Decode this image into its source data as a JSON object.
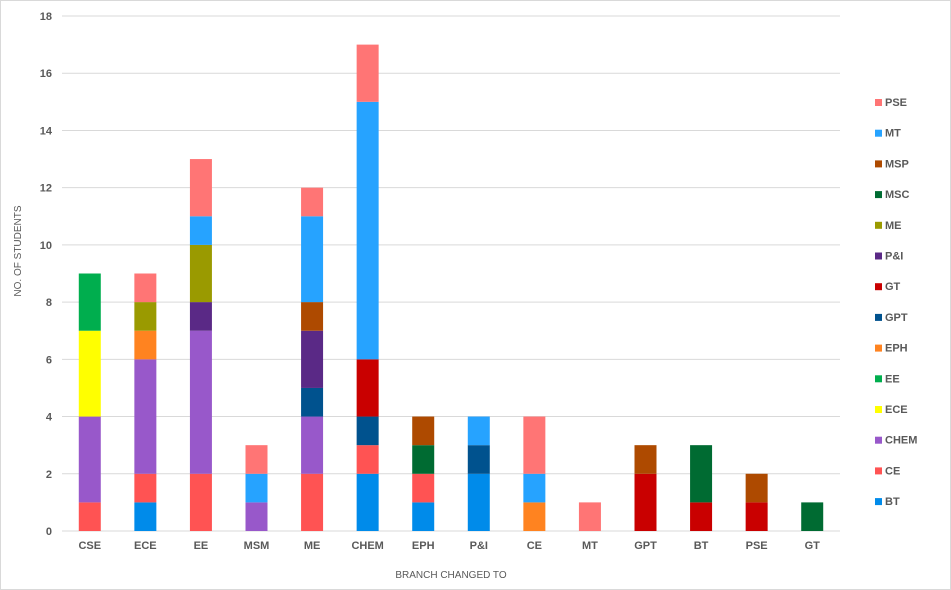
{
  "chart_data": {
    "type": "bar",
    "stacked": true,
    "xlabel": "BRANCH CHANGED TO",
    "ylabel": "NO. OF STUDENTS",
    "ylim": [
      0,
      18
    ],
    "yticks": [
      0,
      2,
      4,
      6,
      8,
      10,
      12,
      14,
      16,
      18
    ],
    "grid": true,
    "legend_position": "right",
    "categories": [
      "CSE",
      "ECE",
      "EE",
      "MSM",
      "ME",
      "CHEM",
      "EPH",
      "P&I",
      "CE",
      "MT",
      "GPT",
      "BT",
      "PSE",
      "GT"
    ],
    "series": [
      {
        "name": "BT",
        "color": "#008BEA",
        "values": [
          0,
          1,
          0,
          0,
          0,
          2,
          1,
          2,
          0,
          0,
          0,
          0,
          0,
          0
        ]
      },
      {
        "name": "CE",
        "color": "#FF5353",
        "values": [
          1,
          1,
          2,
          0,
          2,
          1,
          1,
          0,
          0,
          0,
          0,
          0,
          0,
          0
        ]
      },
      {
        "name": "CHEM",
        "color": "#9858CA",
        "values": [
          3,
          4,
          5,
          1,
          2,
          0,
          0,
          0,
          0,
          0,
          0,
          0,
          0,
          0
        ]
      },
      {
        "name": "ECE",
        "color": "#FFFF00",
        "values": [
          3,
          0,
          0,
          0,
          0,
          0,
          0,
          0,
          0,
          0,
          0,
          0,
          0,
          0
        ]
      },
      {
        "name": "EE",
        "color": "#00AE4E",
        "values": [
          2,
          0,
          0,
          0,
          0,
          0,
          0,
          0,
          0,
          0,
          0,
          0,
          0,
          0
        ]
      },
      {
        "name": "EPH",
        "color": "#FF8320",
        "values": [
          0,
          1,
          0,
          0,
          0,
          0,
          0,
          0,
          1,
          0,
          0,
          0,
          0,
          0
        ]
      },
      {
        "name": "GPT",
        "color": "#00528E",
        "values": [
          0,
          0,
          0,
          0,
          1,
          1,
          0,
          1,
          0,
          0,
          0,
          0,
          0,
          0
        ]
      },
      {
        "name": "GT",
        "color": "#C90000",
        "values": [
          0,
          0,
          0,
          0,
          0,
          2,
          0,
          0,
          0,
          0,
          2,
          1,
          1,
          0
        ]
      },
      {
        "name": "P&I",
        "color": "#5A2986",
        "values": [
          0,
          0,
          1,
          0,
          2,
          0,
          0,
          0,
          0,
          0,
          0,
          0,
          0,
          0
        ]
      },
      {
        "name": "ME",
        "color": "#9A9A00",
        "values": [
          0,
          1,
          2,
          0,
          0,
          0,
          0,
          0,
          0,
          0,
          0,
          0,
          0,
          0
        ]
      },
      {
        "name": "MSC",
        "color": "#006B32",
        "values": [
          0,
          0,
          0,
          0,
          0,
          0,
          1,
          0,
          0,
          0,
          0,
          2,
          0,
          1
        ]
      },
      {
        "name": "MSP",
        "color": "#AE4A00",
        "values": [
          0,
          0,
          0,
          0,
          1,
          0,
          1,
          0,
          0,
          0,
          1,
          0,
          1,
          0
        ]
      },
      {
        "name": "MT",
        "color": "#26A3FF",
        "values": [
          0,
          0,
          1,
          1,
          3,
          9,
          0,
          1,
          1,
          0,
          0,
          0,
          0,
          0
        ]
      },
      {
        "name": "PSE",
        "color": "#FF7575",
        "values": [
          0,
          1,
          2,
          1,
          1,
          2,
          0,
          0,
          2,
          1,
          0,
          0,
          0,
          0
        ]
      }
    ]
  }
}
